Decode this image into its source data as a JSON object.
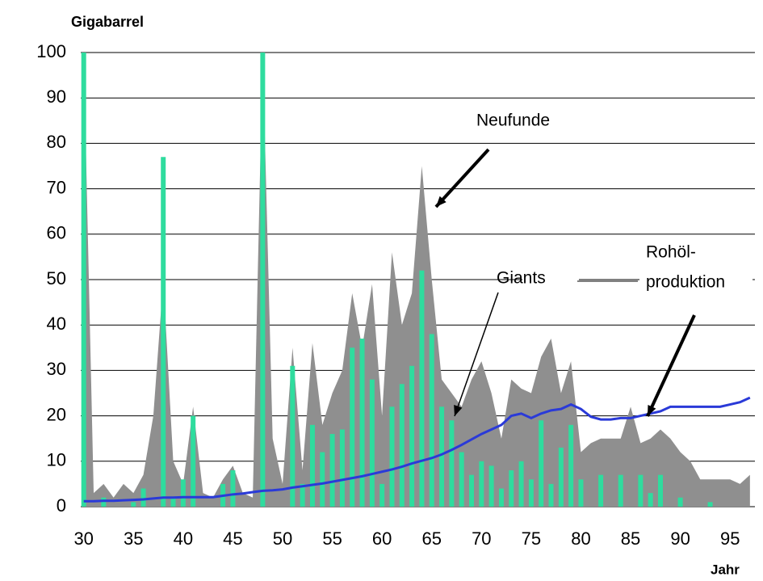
{
  "chart_data": {
    "type": "combo",
    "y_label": "Gigabarrel",
    "x_label": "Jahr",
    "annotations": [
      "Neufunde",
      "Giants",
      "Rohöl-",
      "produktion"
    ],
    "x": [
      30,
      31,
      32,
      33,
      34,
      35,
      36,
      37,
      38,
      39,
      40,
      41,
      42,
      43,
      44,
      45,
      46,
      47,
      48,
      49,
      50,
      51,
      52,
      53,
      54,
      55,
      56,
      57,
      58,
      59,
      60,
      61,
      62,
      63,
      64,
      65,
      66,
      67,
      68,
      69,
      70,
      71,
      72,
      73,
      74,
      75,
      76,
      77,
      78,
      79,
      80,
      81,
      82,
      83,
      84,
      85,
      86,
      87,
      88,
      89,
      90,
      91,
      92,
      93,
      94,
      95,
      96,
      97
    ],
    "series": [
      {
        "name": "Neufunde",
        "kind": "area",
        "color": "#8f8f8f",
        "values": [
          100,
          3,
          5,
          2,
          5,
          3,
          7,
          20,
          50,
          10,
          5,
          22,
          3,
          2,
          6,
          9,
          3,
          2,
          100,
          15,
          5,
          35,
          8,
          36,
          18,
          25,
          30,
          47,
          35,
          49,
          20,
          56,
          40,
          47,
          75,
          50,
          28,
          25,
          22,
          28,
          32,
          25,
          15,
          28,
          26,
          25,
          33,
          37,
          25,
          32,
          12,
          14,
          15,
          15,
          15,
          22,
          14,
          15,
          17,
          15,
          12,
          10,
          6,
          6,
          6,
          6,
          5,
          7
        ]
      },
      {
        "name": "Giants",
        "kind": "bar",
        "color": "#2fdc9e",
        "values": [
          100,
          0,
          2,
          0,
          0,
          1,
          4,
          0,
          77,
          2,
          6,
          20,
          0,
          0,
          5,
          8,
          0,
          0,
          100,
          0,
          0,
          31,
          5,
          18,
          12,
          16,
          17,
          35,
          37,
          28,
          5,
          22,
          27,
          31,
          52,
          38,
          22,
          19,
          12,
          7,
          10,
          9,
          4,
          8,
          10,
          6,
          19,
          5,
          13,
          18,
          6,
          0,
          7,
          0,
          7,
          0,
          7,
          3,
          7,
          0,
          2,
          0,
          0,
          1,
          0,
          0,
          0,
          0
        ]
      },
      {
        "name": "Rohölproduktion",
        "kind": "line",
        "color": "#2a3ad8",
        "values": [
          1.2,
          1.2,
          1.3,
          1.3,
          1.4,
          1.5,
          1.6,
          1.8,
          2,
          2,
          2.1,
          2.1,
          2.1,
          2.1,
          2.4,
          2.7,
          2.9,
          3.2,
          3.5,
          3.6,
          3.8,
          4.2,
          4.5,
          4.8,
          5.1,
          5.5,
          5.9,
          6.3,
          6.7,
          7.2,
          7.7,
          8.2,
          8.8,
          9.5,
          10.1,
          10.7,
          11.5,
          12.5,
          13.6,
          14.8,
          16,
          17,
          18,
          20,
          20.5,
          19.5,
          20.5,
          21.2,
          21.5,
          22.5,
          21.5,
          19.8,
          19.2,
          19.2,
          19.5,
          19.5,
          20,
          20.5,
          21,
          22,
          22,
          22,
          22,
          22,
          22,
          22.5,
          23,
          24
        ]
      }
    ],
    "xlim": [
      29.7,
      97.5
    ],
    "xticks": [
      30,
      35,
      40,
      45,
      50,
      55,
      60,
      65,
      70,
      75,
      80,
      85,
      90,
      95
    ],
    "ylim": [
      0,
      100
    ],
    "yticks": [
      0,
      10,
      20,
      30,
      40,
      50,
      60,
      70,
      80,
      90,
      100
    ],
    "grid": true
  }
}
